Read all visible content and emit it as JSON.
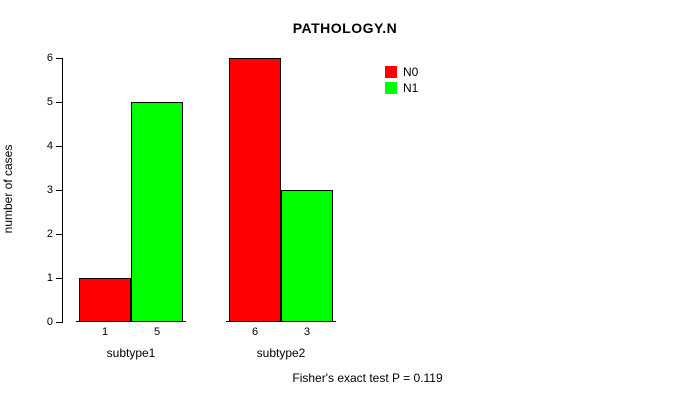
{
  "chart_data": {
    "type": "bar",
    "title": "PATHOLOGY.N",
    "xlabel": "",
    "ylabel": "number of cases",
    "ylim": [
      0,
      6
    ],
    "yticks": [
      0,
      1,
      2,
      3,
      4,
      5,
      6
    ],
    "categories": [
      "subtype1",
      "subtype2"
    ],
    "series": [
      {
        "name": "N0",
        "color": "#ff0000"
      },
      {
        "name": "N1",
        "color": "#00ff00"
      }
    ],
    "groups": [
      {
        "label": "subtype1",
        "values": [
          1,
          5
        ]
      },
      {
        "label": "subtype2",
        "values": [
          6,
          3
        ]
      }
    ],
    "legend_position": "top-right",
    "grid": false,
    "footer": "Fisher's exact test P = 0.119"
  }
}
